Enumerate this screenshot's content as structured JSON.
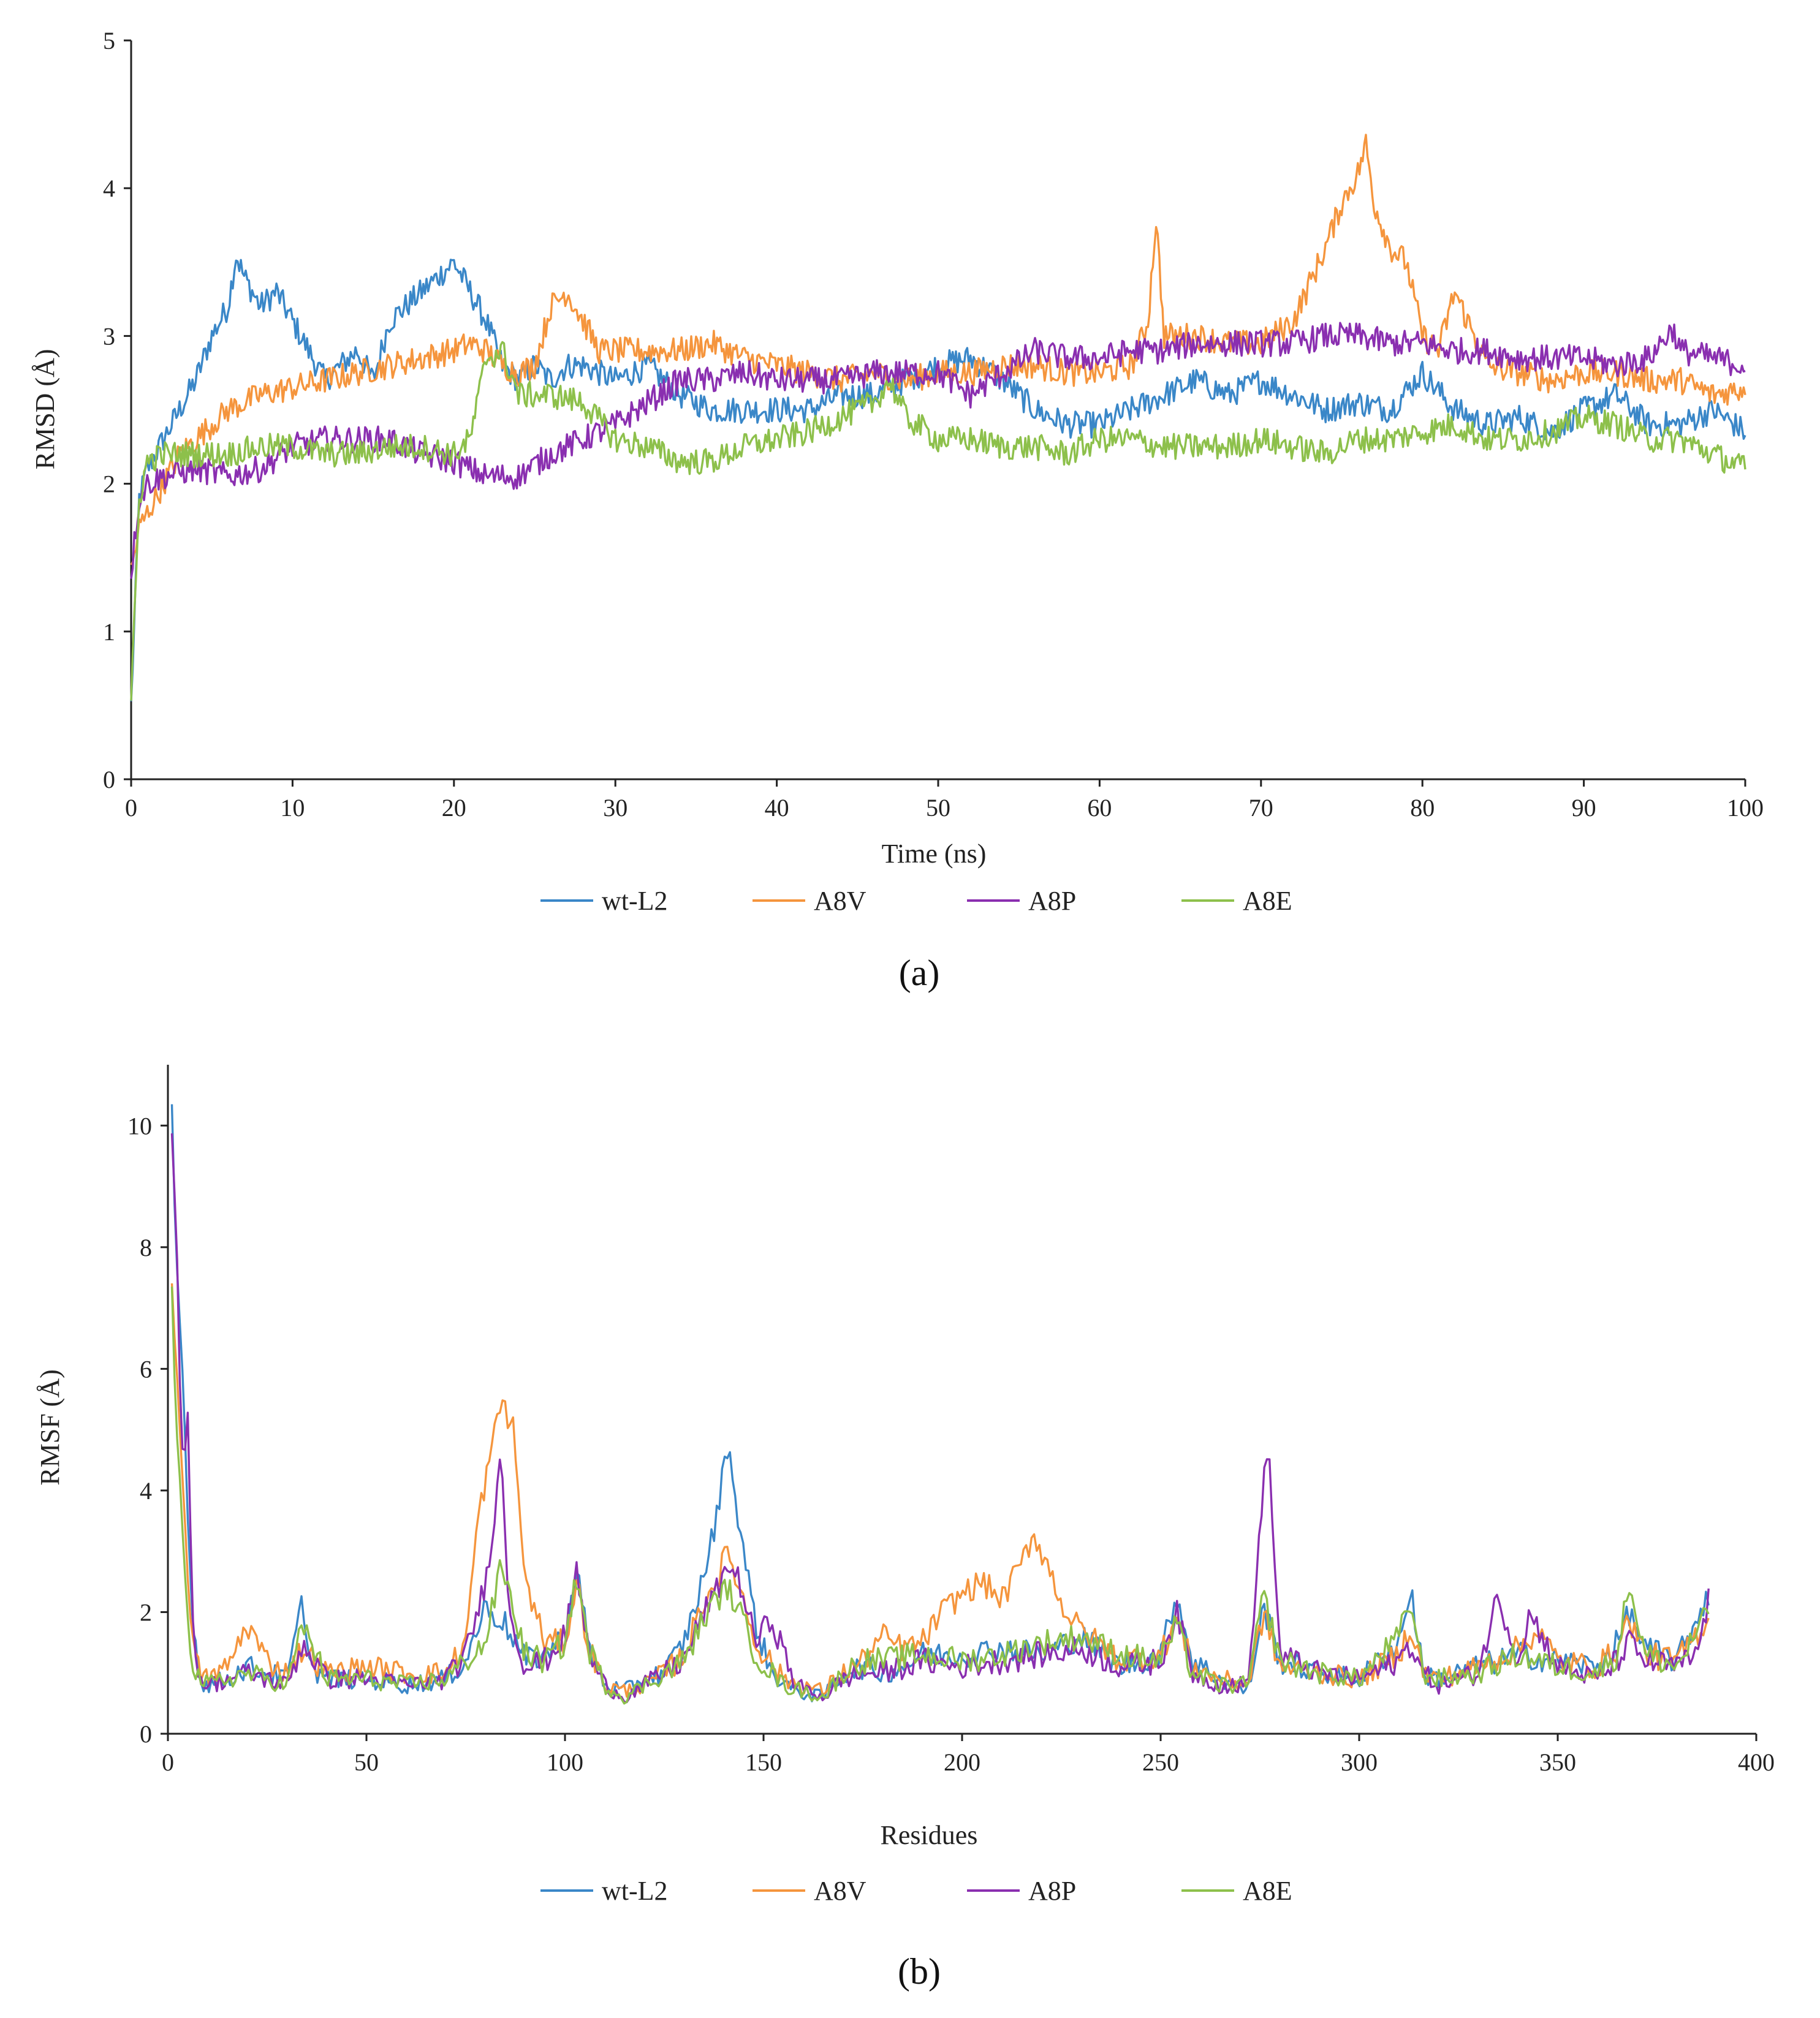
{
  "chart_data": [
    {
      "type": "line",
      "panel_caption": "(a)",
      "xlabel": "Time (ns)",
      "ylabel": "RMSD (Å)",
      "xlim": [
        0,
        100
      ],
      "ylim": [
        0,
        5
      ],
      "xticks": [
        0,
        10,
        20,
        30,
        40,
        50,
        60,
        70,
        80,
        90,
        100
      ],
      "yticks": [
        0,
        1,
        2,
        3,
        4,
        5
      ],
      "legend": "bottom",
      "series": [
        {
          "name": "wt-L2",
          "color": "#3a87c8",
          "x": [
            0,
            0.5,
            1,
            2,
            3,
            4,
            5,
            6,
            6.5,
            7,
            8,
            9,
            10,
            11,
            12,
            13,
            14,
            15,
            16,
            17,
            18,
            19,
            20,
            21,
            22,
            23,
            24,
            25,
            26,
            27,
            28,
            30,
            32,
            34,
            36,
            38,
            40,
            42,
            44,
            46,
            48,
            50,
            52,
            54,
            56,
            58,
            60,
            62,
            64,
            66,
            68,
            70,
            72,
            74,
            76,
            78,
            80,
            82,
            84,
            86,
            88,
            90,
            92,
            94,
            96,
            98,
            100
          ],
          "values": [
            0.5,
            1.9,
            2.1,
            2.3,
            2.5,
            2.7,
            3.0,
            3.2,
            3.55,
            3.4,
            3.2,
            3.3,
            3.1,
            2.9,
            2.7,
            2.8,
            2.9,
            2.7,
            3.1,
            3.2,
            3.3,
            3.4,
            3.5,
            3.3,
            3.1,
            2.8,
            2.7,
            2.8,
            2.7,
            2.8,
            2.8,
            2.7,
            2.8,
            2.6,
            2.5,
            2.5,
            2.5,
            2.5,
            2.6,
            2.6,
            2.7,
            2.8,
            2.85,
            2.7,
            2.5,
            2.4,
            2.4,
            2.5,
            2.6,
            2.7,
            2.6,
            2.7,
            2.6,
            2.5,
            2.55,
            2.5,
            2.75,
            2.5,
            2.4,
            2.45,
            2.35,
            2.5,
            2.6,
            2.4,
            2.4,
            2.5,
            2.35
          ]
        },
        {
          "name": "A8V",
          "color": "#f5953d",
          "x": [
            0,
            0.5,
            1,
            2,
            3,
            4,
            5,
            6,
            8,
            10,
            12,
            14,
            16,
            18,
            20,
            21,
            22,
            23,
            24,
            25,
            26,
            27,
            28,
            29,
            30,
            32,
            34,
            36,
            38,
            40,
            42,
            44,
            46,
            48,
            50,
            52,
            54,
            56,
            58,
            60,
            62,
            63,
            63.5,
            64,
            66,
            68,
            70,
            72,
            74,
            75,
            76,
            76.5,
            77,
            78,
            79,
            80,
            81,
            82,
            84,
            86,
            88,
            90,
            92,
            94,
            96,
            98,
            100
          ],
          "values": [
            1.4,
            1.7,
            1.8,
            2.0,
            2.2,
            2.3,
            2.4,
            2.5,
            2.6,
            2.65,
            2.7,
            2.75,
            2.8,
            2.85,
            2.9,
            2.95,
            2.9,
            2.8,
            2.75,
            2.8,
            3.2,
            3.3,
            3.1,
            2.9,
            2.9,
            2.9,
            2.9,
            2.95,
            2.85,
            2.8,
            2.75,
            2.7,
            2.75,
            2.7,
            2.75,
            2.75,
            2.8,
            2.8,
            2.75,
            2.75,
            2.8,
            3.1,
            3.8,
            3.0,
            3.0,
            2.95,
            2.95,
            3.1,
            3.6,
            3.9,
            4.1,
            4.3,
            3.9,
            3.6,
            3.5,
            3.0,
            2.9,
            3.3,
            2.8,
            2.75,
            2.7,
            2.75,
            2.75,
            2.7,
            2.7,
            2.6,
            2.65
          ]
        },
        {
          "name": "A8P",
          "color": "#8a2fb0",
          "x": [
            0,
            0.5,
            1,
            2,
            4,
            6,
            8,
            10,
            12,
            14,
            16,
            18,
            20,
            22,
            24,
            26,
            28,
            30,
            32,
            34,
            36,
            38,
            40,
            42,
            44,
            46,
            48,
            50,
            52,
            54,
            56,
            58,
            60,
            62,
            64,
            66,
            68,
            70,
            72,
            74,
            76,
            78,
            80,
            82,
            84,
            86,
            88,
            90,
            92,
            94,
            95.5,
            96,
            98,
            100
          ],
          "values": [
            1.4,
            1.9,
            2.0,
            2.05,
            2.1,
            2.05,
            2.1,
            2.25,
            2.3,
            2.3,
            2.3,
            2.2,
            2.15,
            2.05,
            2.05,
            2.2,
            2.3,
            2.4,
            2.55,
            2.7,
            2.7,
            2.75,
            2.7,
            2.7,
            2.7,
            2.75,
            2.75,
            2.75,
            2.6,
            2.75,
            2.9,
            2.85,
            2.85,
            2.9,
            2.9,
            2.95,
            2.95,
            2.95,
            2.95,
            3.0,
            3.0,
            2.95,
            2.95,
            2.9,
            2.9,
            2.85,
            2.85,
            2.85,
            2.8,
            2.85,
            3.05,
            2.9,
            2.85,
            2.8
          ]
        },
        {
          "name": "A8E",
          "color": "#8dc04b",
          "x": [
            0,
            0.5,
            1,
            2,
            4,
            6,
            8,
            10,
            12,
            14,
            16,
            18,
            20,
            21,
            22,
            23,
            24,
            26,
            28,
            30,
            32,
            34,
            36,
            38,
            40,
            42,
            44,
            46,
            47,
            48,
            50,
            52,
            54,
            56,
            58,
            60,
            62,
            64,
            66,
            68,
            70,
            72,
            74,
            76,
            78,
            80,
            82,
            84,
            86,
            88,
            90,
            92,
            94,
            96,
            98,
            100
          ],
          "values": [
            0.5,
            1.9,
            2.15,
            2.2,
            2.2,
            2.2,
            2.25,
            2.25,
            2.2,
            2.2,
            2.25,
            2.25,
            2.2,
            2.3,
            2.85,
            2.9,
            2.6,
            2.6,
            2.55,
            2.3,
            2.25,
            2.15,
            2.15,
            2.25,
            2.3,
            2.35,
            2.45,
            2.55,
            2.7,
            2.45,
            2.3,
            2.3,
            2.25,
            2.25,
            2.2,
            2.3,
            2.3,
            2.25,
            2.25,
            2.25,
            2.3,
            2.25,
            2.2,
            2.3,
            2.3,
            2.35,
            2.4,
            2.3,
            2.3,
            2.35,
            2.45,
            2.4,
            2.3,
            2.3,
            2.2,
            2.1
          ]
        }
      ]
    },
    {
      "type": "line",
      "panel_caption": "(b)",
      "xlabel": "Residues",
      "ylabel": "RMSF (Å)",
      "xlim": [
        0,
        400
      ],
      "ylim": [
        0,
        11
      ],
      "xticks": [
        0,
        50,
        100,
        150,
        200,
        250,
        300,
        350,
        400
      ],
      "yticks": [
        0,
        2,
        4,
        6,
        8,
        10
      ],
      "legend": "bottom",
      "series": [
        {
          "name": "wt-L2",
          "color": "#3a87c8",
          "x": [
            1,
            2,
            4,
            6,
            8,
            10,
            15,
            20,
            25,
            30,
            34,
            36,
            40,
            50,
            60,
            70,
            75,
            80,
            85,
            90,
            95,
            100,
            103,
            106,
            110,
            115,
            120,
            125,
            130,
            135,
            138,
            141,
            144,
            148,
            152,
            158,
            165,
            170,
            175,
            180,
            185,
            190,
            200,
            210,
            220,
            230,
            240,
            250,
            254,
            258,
            265,
            272,
            276,
            280,
            290,
            300,
            310,
            313,
            316,
            320,
            330,
            340,
            350,
            360,
            365,
            368,
            372,
            380,
            388
          ],
          "values": [
            10.2,
            8.0,
            5.5,
            2.0,
            0.9,
            0.8,
            0.9,
            1.1,
            1.0,
            0.9,
            2.2,
            1.1,
            0.9,
            0.9,
            0.8,
            0.9,
            1.2,
            2.1,
            1.8,
            1.2,
            1.3,
            1.6,
            2.7,
            1.4,
            0.8,
            0.7,
            0.9,
            1.0,
            1.5,
            2.6,
            3.5,
            4.8,
            3.4,
            1.8,
            1.0,
            0.7,
            0.6,
            1.0,
            1.1,
            1.0,
            1.1,
            1.3,
            1.3,
            1.4,
            1.3,
            1.6,
            1.1,
            1.3,
            2.3,
            1.2,
            0.9,
            0.7,
            2.1,
            1.2,
            1.0,
            0.9,
            1.5,
            2.4,
            1.0,
            0.9,
            1.1,
            1.3,
            1.2,
            1.1,
            1.5,
            2.0,
            1.4,
            1.2,
            2.3
          ]
        },
        {
          "name": "A8V",
          "color": "#f5953d",
          "x": [
            1,
            2,
            4,
            6,
            8,
            10,
            15,
            20,
            25,
            30,
            34,
            40,
            50,
            60,
            70,
            75,
            78,
            81,
            84,
            87,
            90,
            95,
            100,
            103,
            106,
            110,
            115,
            120,
            125,
            130,
            135,
            138,
            141,
            144,
            148,
            155,
            165,
            170,
            175,
            180,
            185,
            190,
            195,
            200,
            205,
            210,
            215,
            218,
            222,
            226,
            230,
            240,
            250,
            254,
            258,
            265,
            272,
            276,
            280,
            290,
            300,
            310,
            313,
            316,
            320,
            330,
            340,
            345,
            350,
            360,
            365,
            368,
            372,
            380,
            388
          ],
          "values": [
            7.5,
            6.0,
            4.0,
            1.5,
            1.0,
            0.9,
            1.1,
            1.8,
            1.2,
            1.0,
            1.4,
            1.0,
            1.1,
            1.0,
            1.0,
            1.5,
            3.5,
            4.5,
            5.5,
            5.0,
            2.5,
            1.5,
            1.5,
            2.5,
            1.4,
            0.8,
            0.7,
            0.8,
            1.0,
            1.3,
            2.2,
            2.5,
            3.0,
            2.4,
            1.5,
            0.9,
            0.7,
            1.0,
            1.2,
            1.6,
            1.4,
            1.5,
            2.0,
            2.3,
            2.5,
            2.2,
            2.8,
            3.3,
            2.7,
            2.0,
            1.7,
            1.2,
            1.3,
            1.9,
            1.1,
            0.9,
            0.8,
            2.0,
            1.1,
            1.0,
            0.9,
            1.3,
            1.8,
            1.0,
            0.9,
            1.1,
            1.4,
            1.7,
            1.2,
            1.1,
            1.4,
            1.9,
            1.3,
            1.2,
            1.9
          ]
        },
        {
          "name": "A8P",
          "color": "#8a2fb0",
          "x": [
            1,
            2,
            3,
            4,
            5,
            6,
            8,
            10,
            15,
            20,
            25,
            30,
            34,
            40,
            50,
            60,
            70,
            75,
            80,
            82,
            84,
            86,
            90,
            95,
            100,
            103,
            106,
            110,
            115,
            120,
            125,
            130,
            135,
            138,
            141,
            144,
            148,
            152,
            158,
            165,
            170,
            175,
            180,
            190,
            200,
            210,
            220,
            230,
            240,
            250,
            254,
            258,
            265,
            272,
            274,
            277,
            280,
            290,
            300,
            310,
            313,
            316,
            320,
            330,
            335,
            340,
            343,
            350,
            360,
            365,
            368,
            372,
            380,
            385,
            388
          ],
          "values": [
            10.0,
            8.5,
            6.0,
            4.0,
            5.5,
            2.0,
            0.9,
            0.8,
            0.9,
            1.0,
            0.9,
            0.8,
            1.5,
            0.9,
            0.9,
            0.8,
            0.9,
            1.3,
            2.5,
            3.5,
            4.6,
            2.0,
            1.1,
            1.2,
            1.6,
            2.7,
            1.3,
            0.8,
            0.6,
            0.8,
            1.0,
            1.2,
            2.0,
            2.3,
            2.8,
            2.5,
            1.5,
            1.9,
            0.8,
            0.6,
            0.9,
            1.0,
            1.0,
            1.2,
            1.1,
            1.2,
            1.3,
            1.4,
            1.1,
            1.2,
            2.0,
            1.0,
            0.8,
            0.8,
            2.5,
            4.9,
            1.3,
            1.0,
            0.9,
            1.2,
            1.5,
            1.0,
            0.8,
            1.0,
            2.3,
            1.2,
            2.0,
            1.1,
            0.9,
            1.2,
            1.5,
            1.2,
            1.1,
            1.3,
            2.2
          ]
        },
        {
          "name": "A8E",
          "color": "#8dc04b",
          "x": [
            1,
            2,
            4,
            6,
            8,
            10,
            15,
            20,
            25,
            30,
            34,
            40,
            50,
            60,
            70,
            75,
            80,
            84,
            88,
            90,
            95,
            100,
            103,
            106,
            110,
            115,
            120,
            125,
            130,
            135,
            138,
            141,
            144,
            148,
            155,
            165,
            170,
            175,
            180,
            190,
            200,
            210,
            220,
            230,
            240,
            250,
            254,
            258,
            265,
            272,
            276,
            280,
            290,
            300,
            310,
            313,
            316,
            320,
            330,
            340,
            350,
            360,
            365,
            368,
            372,
            380,
            388
          ],
          "values": [
            7.5,
            5.0,
            3.0,
            1.2,
            0.9,
            0.8,
            0.9,
            1.0,
            0.9,
            0.8,
            1.8,
            0.9,
            0.9,
            0.8,
            0.9,
            1.2,
            1.5,
            2.8,
            1.8,
            1.3,
            1.2,
            1.5,
            2.6,
            1.4,
            0.8,
            0.6,
            0.8,
            1.0,
            1.2,
            1.9,
            2.2,
            2.4,
            2.0,
            1.3,
            0.8,
            0.6,
            1.0,
            1.2,
            1.2,
            1.3,
            1.2,
            1.3,
            1.5,
            1.6,
            1.3,
            1.2,
            1.8,
            1.0,
            0.8,
            0.8,
            2.3,
            1.2,
            1.0,
            0.9,
            1.6,
            2.2,
            1.0,
            0.9,
            1.0,
            1.3,
            1.1,
            1.0,
            1.3,
            2.5,
            1.3,
            1.1,
            2.0
          ]
        }
      ]
    }
  ]
}
